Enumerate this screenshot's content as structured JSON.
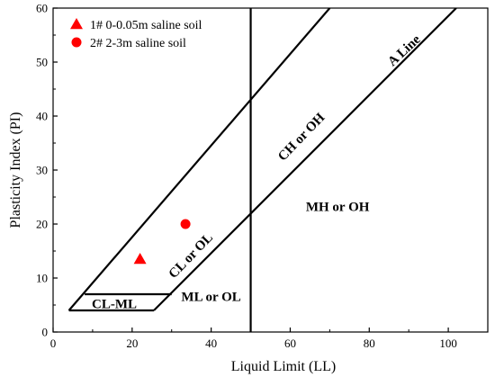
{
  "chart_data": {
    "type": "scatter",
    "xlabel": "Liquid Limit (LL)",
    "ylabel": "Plasticity Index (PI)",
    "xlim": [
      0,
      110
    ],
    "ylim": [
      0,
      60
    ],
    "x_ticks": [
      0,
      20,
      40,
      60,
      80,
      100
    ],
    "y_ticks": [
      0,
      10,
      20,
      30,
      40,
      50,
      60
    ],
    "grid": false,
    "legend_position": "top-left",
    "series": [
      {
        "name": "1# 0-0.05m saline soil",
        "marker": "triangle",
        "color": "#ff0000",
        "points": [
          {
            "x": 22,
            "y": 13.5
          }
        ]
      },
      {
        "name": "2# 2-3m saline soil",
        "marker": "circle",
        "color": "#ff0000",
        "points": [
          {
            "x": 33.5,
            "y": 20
          }
        ]
      }
    ],
    "reference_lines": [
      {
        "name": "A Line",
        "points": [
          [
            25.5,
            4
          ],
          [
            102,
            60
          ]
        ]
      },
      {
        "name": "U Line",
        "points": [
          [
            4,
            4
          ],
          [
            70,
            60
          ]
        ]
      },
      {
        "name": "LL=50",
        "points": [
          [
            50,
            0
          ],
          [
            50,
            60
          ]
        ]
      },
      {
        "name": "CL-ML upper",
        "points": [
          [
            8,
            7
          ],
          [
            30,
            7
          ]
        ]
      },
      {
        "name": "CL-ML lower",
        "points": [
          [
            4,
            4
          ],
          [
            25.5,
            4
          ]
        ]
      }
    ],
    "region_labels": [
      {
        "text": "CL-ML",
        "x": 15.5,
        "y": 5,
        "angle": 0
      },
      {
        "text": "ML or OL",
        "x": 40,
        "y": 6.3,
        "angle": 0
      },
      {
        "text": "CL or OL",
        "x": 35,
        "y": 14,
        "angle": -46
      },
      {
        "text": "CH or OH",
        "x": 63,
        "y": 36,
        "angle": -46
      },
      {
        "text": "MH or OH",
        "x": 72,
        "y": 23,
        "angle": 0
      },
      {
        "text": "A Line",
        "x": 89,
        "y": 52,
        "angle": -43
      }
    ]
  }
}
